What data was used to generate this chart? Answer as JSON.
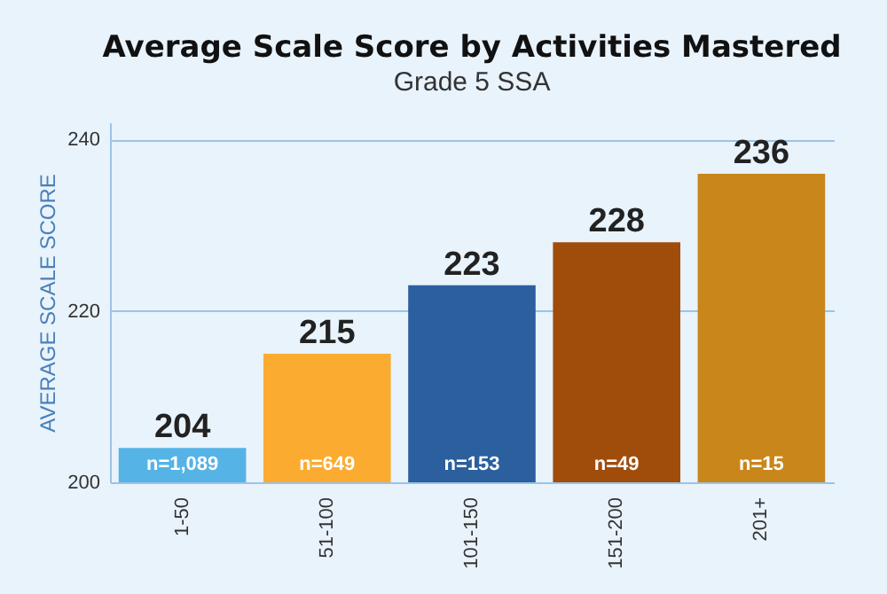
{
  "chart_data": {
    "type": "bar",
    "title": "Average Scale Score by Activities Mastered",
    "subtitle": "Grade 5 SSA",
    "ylabel": "AVERAGE SCALE SCORE",
    "categories": [
      "1-50",
      "51-100",
      "101-150",
      "151-200",
      "201+"
    ],
    "values": [
      204,
      215,
      223,
      228,
      236
    ],
    "colors": [
      "#55b3e6",
      "#fbab30",
      "#2b5f9e",
      "#a04c0b",
      "#c8861b"
    ],
    "data_labels": true,
    "annotations": [
      {
        "text": "n=1,089",
        "x": "1-50",
        "y": 200
      },
      {
        "text": "n=649",
        "x": "51-100",
        "y": 200
      },
      {
        "text": "n=153",
        "x": "101-150",
        "y": 200
      },
      {
        "text": "n=49",
        "x": "151-200",
        "y": 200
      },
      {
        "text": "n=15",
        "x": "201+",
        "y": 200
      }
    ],
    "ylim": [
      200,
      242
    ],
    "yticks": [
      200,
      220,
      240
    ],
    "grid": "y"
  }
}
